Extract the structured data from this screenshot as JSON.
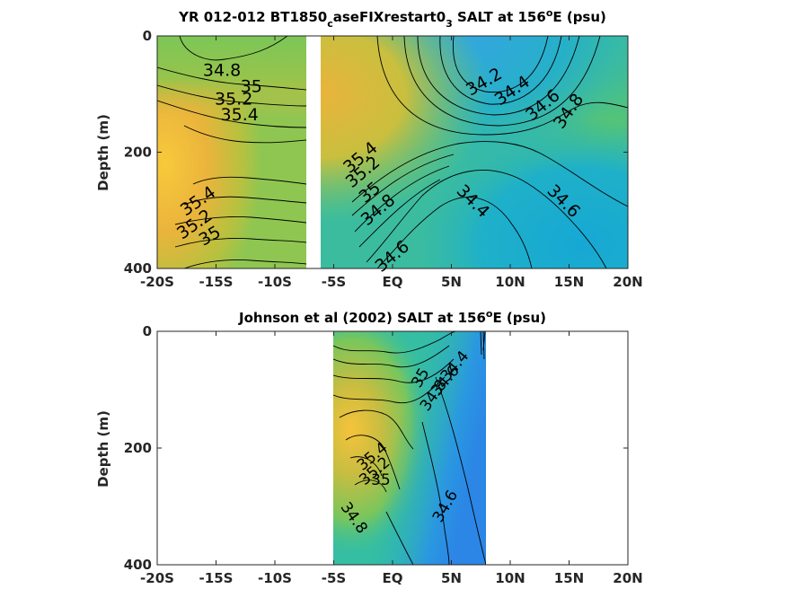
{
  "chart_data": [
    {
      "type": "heatmap",
      "title": {
        "prefix": "YR 012-012 BT1850",
        "sub1": "c",
        "middle": "aseFIXrestart0",
        "sub2": "3",
        "after": " SALT at 156",
        "sup": "o",
        "suffix": "E (psu)"
      },
      "ylabel": "Depth (m)",
      "xlim": [
        -20,
        20
      ],
      "ylim": [
        0,
        400
      ],
      "y_reversed": true,
      "xticks": [
        {
          "value": -20,
          "label": "-20S"
        },
        {
          "value": -15,
          "label": "-15S"
        },
        {
          "value": -10,
          "label": "-10S"
        },
        {
          "value": -5,
          "label": "-5S"
        },
        {
          "value": 0,
          "label": "EQ"
        },
        {
          "value": 5,
          "label": "5N"
        },
        {
          "value": 10,
          "label": "10N"
        },
        {
          "value": 15,
          "label": "15N"
        },
        {
          "value": 20,
          "label": "20N"
        }
      ],
      "yticks": [
        {
          "value": 0,
          "label": "0"
        },
        {
          "value": 200,
          "label": "200"
        },
        {
          "value": 400,
          "label": "400"
        }
      ],
      "data_gap_lat": [
        -7.5,
        -6.5
      ],
      "contour_labels": [
        {
          "label": "34.8",
          "lat": -14.5,
          "depth": 60,
          "rot": 0
        },
        {
          "label": "35",
          "lat": -12.0,
          "depth": 88,
          "rot": 0
        },
        {
          "label": "35.2",
          "lat": -13.5,
          "depth": 110,
          "rot": 0
        },
        {
          "label": "35.4",
          "lat": -13.0,
          "depth": 137,
          "rot": 0
        },
        {
          "label": "35.4",
          "lat": -16.5,
          "depth": 285,
          "rot": -35
        },
        {
          "label": "35.2",
          "lat": -16.8,
          "depth": 325,
          "rot": -35
        },
        {
          "label": "35",
          "lat": -15.5,
          "depth": 345,
          "rot": -30
        },
        {
          "label": "34.2",
          "lat": 7.8,
          "depth": 80,
          "rot": -30
        },
        {
          "label": "34.4",
          "lat": 10.2,
          "depth": 95,
          "rot": -35
        },
        {
          "label": "34.6",
          "lat": 12.8,
          "depth": 120,
          "rot": -40
        },
        {
          "label": "34.8",
          "lat": 15.0,
          "depth": 130,
          "rot": -55
        },
        {
          "label": "35.4",
          "lat": -2.7,
          "depth": 210,
          "rot": -40
        },
        {
          "label": "35.2",
          "lat": -2.5,
          "depth": 235,
          "rot": -40
        },
        {
          "label": "35",
          "lat": -1.9,
          "depth": 270,
          "rot": -40
        },
        {
          "label": "34.8",
          "lat": -1.2,
          "depth": 300,
          "rot": -40
        },
        {
          "label": "34.4",
          "lat": 6.8,
          "depth": 285,
          "rot": 45
        },
        {
          "label": "34.6",
          "lat": 14.5,
          "depth": 285,
          "rot": 45
        },
        {
          "label": "34.6",
          "lat": 0.0,
          "depth": 380,
          "rot": -40
        }
      ]
    },
    {
      "type": "heatmap",
      "title": {
        "prefix": "Johnson et al (2002) SALT at 156",
        "sup": "o",
        "suffix": "E (psu)"
      },
      "ylabel": "Depth (m)",
      "xlim": [
        -20,
        20
      ],
      "ylim": [
        0,
        400
      ],
      "y_reversed": true,
      "data_lat_range": [
        -5,
        8
      ],
      "xticks": [
        {
          "value": -20,
          "label": "-20S"
        },
        {
          "value": -15,
          "label": "-15S"
        },
        {
          "value": -10,
          "label": "-10S"
        },
        {
          "value": -5,
          "label": "-5S"
        },
        {
          "value": 0,
          "label": "EQ"
        },
        {
          "value": 5,
          "label": "5N"
        },
        {
          "value": 10,
          "label": "10N"
        },
        {
          "value": 15,
          "label": "15N"
        },
        {
          "value": 20,
          "label": "20N"
        }
      ],
      "yticks": [
        {
          "value": 0,
          "label": "0"
        },
        {
          "value": 200,
          "label": "200"
        },
        {
          "value": 400,
          "label": "400"
        }
      ],
      "contour_labels": [
        {
          "label": "34.4",
          "lat": 5.3,
          "depth": 60,
          "rot": -50
        },
        {
          "label": "34.6",
          "lat": 4.5,
          "depth": 85,
          "rot": -50
        },
        {
          "label": "34.8",
          "lat": 3.5,
          "depth": 110,
          "rot": -55
        },
        {
          "label": "35",
          "lat": 2.4,
          "depth": 80,
          "rot": -60
        },
        {
          "label": "35.4",
          "lat": -1.7,
          "depth": 215,
          "rot": -40
        },
        {
          "label": "35.2",
          "lat": -1.5,
          "depth": 240,
          "rot": -40
        },
        {
          "label": "35",
          "lat": -1.0,
          "depth": 255,
          "rot": 0
        },
        {
          "label": "34.6",
          "lat": 4.5,
          "depth": 300,
          "rot": -60
        },
        {
          "label": "34.8",
          "lat": -3.3,
          "depth": 320,
          "rot": 55
        }
      ]
    }
  ]
}
